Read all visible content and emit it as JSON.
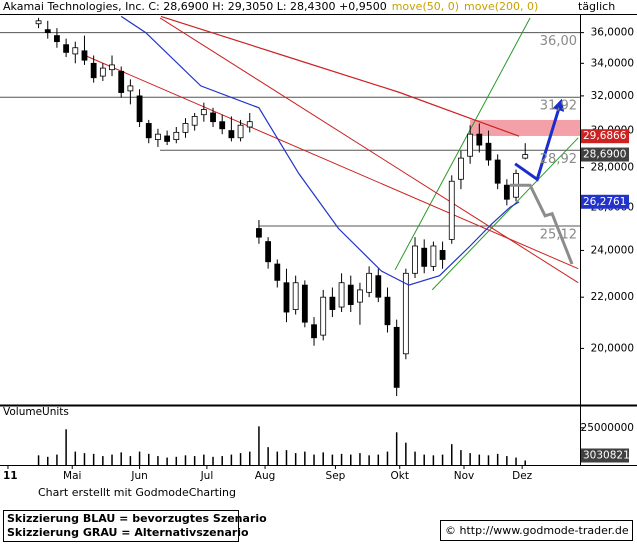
{
  "chart_data": {
    "type": "candlestick",
    "title": "Akamai Technologies, Inc. C: 28,6900 H: 29,3050 L: 28,4300 +0,9500",
    "timeframe": "täglich",
    "legend_color": "#c8a000",
    "log_scale": true,
    "grid": false,
    "candle_up_color": "#ffffff",
    "candle_down_color": "#000000",
    "xlim": [
      -2.6,
      186.9
    ],
    "ylim": [
      18,
      37.2
    ],
    "xticks": [
      {
        "value": 0,
        "label": "11"
      },
      {
        "value": 21,
        "label": "Mai"
      },
      {
        "value": 43,
        "label": "Jun"
      },
      {
        "value": 65,
        "label": "Jul"
      },
      {
        "value": 84,
        "label": "Aug"
      },
      {
        "value": 107,
        "label": "Sep"
      },
      {
        "value": 128,
        "label": "Okt"
      },
      {
        "value": 149,
        "label": "Nov"
      },
      {
        "value": 168,
        "label": "Dez"
      }
    ],
    "yticks": [
      {
        "value": 20,
        "label": "20,0000"
      },
      {
        "value": 22,
        "label": "22,0000"
      },
      {
        "value": 24,
        "label": "24,0000"
      },
      {
        "value": 26,
        "label": "26,0000"
      },
      {
        "value": 28,
        "label": "28,0000"
      },
      {
        "value": 30,
        "label": "30,0000"
      },
      {
        "value": 32,
        "label": "32,0000"
      },
      {
        "value": 34,
        "label": "34,0000"
      },
      {
        "value": 36,
        "label": "36,0000"
      }
    ],
    "x": [
      10,
      13,
      16,
      19,
      22,
      25,
      28,
      31,
      34,
      37,
      40,
      43,
      46,
      49,
      52,
      55,
      58,
      61,
      64,
      67,
      70,
      73,
      76,
      79,
      82,
      85,
      88,
      91,
      94,
      97,
      100,
      103,
      106,
      109,
      112,
      115,
      118,
      121,
      124,
      127,
      130,
      133,
      136,
      139,
      142,
      145,
      148,
      151,
      154,
      157,
      160,
      163,
      166,
      169
    ],
    "open": [
      36.6,
      36.2,
      35.8,
      35.2,
      34.6,
      34.8,
      34.0,
      33.2,
      33.6,
      33.5,
      32.3,
      32.0,
      30.4,
      29.5,
      29.7,
      29.5,
      29.9,
      30.3,
      30.9,
      31.0,
      30.5,
      30.0,
      29.6,
      30.2,
      25.0,
      24.4,
      23.4,
      22.6,
      21.5,
      22.5,
      20.9,
      20.5,
      22.0,
      21.6,
      22.5,
      21.8,
      22.2,
      22.9,
      22.0,
      20.8,
      19.8,
      23.0,
      24.1,
      23.3,
      24.0,
      24.5,
      27.4,
      28.6,
      29.8,
      29.3,
      28.4,
      27.1,
      26.5,
      28.5
    ],
    "high": [
      37.0,
      36.8,
      36.3,
      35.6,
      35.4,
      35.8,
      34.5,
      34.0,
      34.5,
      33.8,
      33.0,
      32.4,
      30.6,
      30.1,
      30.0,
      30.2,
      30.7,
      31.0,
      31.6,
      31.3,
      30.9,
      30.8,
      30.6,
      31.0,
      25.4,
      24.6,
      23.6,
      23.2,
      22.9,
      22.7,
      21.2,
      22.3,
      22.4,
      23.0,
      22.9,
      22.6,
      23.3,
      23.2,
      22.4,
      21.1,
      23.2,
      24.6,
      24.5,
      24.4,
      24.4,
      27.6,
      28.9,
      30.3,
      30.4,
      30.0,
      28.7,
      27.4,
      27.9,
      29.305
    ],
    "low": [
      36.3,
      35.6,
      35.0,
      34.4,
      34.0,
      33.9,
      32.8,
      32.9,
      33.2,
      31.9,
      31.5,
      30.2,
      29.3,
      29.1,
      29.2,
      29.3,
      29.6,
      30.0,
      30.5,
      30.2,
      29.8,
      29.4,
      29.4,
      29.9,
      24.3,
      23.2,
      22.4,
      21.0,
      21.3,
      20.8,
      20.1,
      20.3,
      21.2,
      21.4,
      21.4,
      20.9,
      22.0,
      21.8,
      20.6,
      18.3,
      19.6,
      22.8,
      23.0,
      23.1,
      23.2,
      24.3,
      26.9,
      28.2,
      28.8,
      28.1,
      26.9,
      26.1,
      26.3,
      28.43
    ],
    "close": [
      36.8,
      36.0,
      35.4,
      34.7,
      35.0,
      34.2,
      33.1,
      33.7,
      33.9,
      32.2,
      32.6,
      30.5,
      29.6,
      29.8,
      29.4,
      29.9,
      30.4,
      30.8,
      31.2,
      30.5,
      30.1,
      29.6,
      30.3,
      30.5,
      24.6,
      23.5,
      22.7,
      21.4,
      22.6,
      21.0,
      20.4,
      22.0,
      21.5,
      22.6,
      21.7,
      22.3,
      23.0,
      22.0,
      20.9,
      18.6,
      23.0,
      24.2,
      23.3,
      24.2,
      23.6,
      27.3,
      28.5,
      29.8,
      29.2,
      28.4,
      27.2,
      26.4,
      27.7,
      28.69
    ],
    "close_tag": {
      "value": 28.69,
      "label": "28,6900",
      "color": "#404040"
    },
    "series": [
      {
        "name": "move(50, 0)",
        "color": "#2233cc",
        "x": [
          37,
          45,
          63,
          82,
          95,
          108,
          122,
          131,
          141,
          151,
          158,
          164,
          167
        ],
        "values": [
          37.1,
          36.0,
          32.6,
          31.3,
          27.7,
          25.0,
          23.1,
          22.5,
          22.9,
          24.2,
          25.2,
          26.0,
          26.2761
        ],
        "tag": {
          "value": 26.2761,
          "label": "26,2761"
        }
      },
      {
        "name": "move(200, 0)",
        "color": "#cc2222",
        "x": [
          50,
          90,
          128,
          154,
          167
        ],
        "values": [
          37.1,
          34.5,
          32.2,
          30.5,
          29.6866
        ],
        "tag": {
          "value": 29.6866,
          "label": "29,6866"
        }
      }
    ],
    "levels": [
      {
        "value": 36,
        "label": "36,00",
        "from": -2.6
      },
      {
        "value": 31.92,
        "label": "31,92",
        "from": -2.6
      },
      {
        "value": 28.92,
        "label": "28,92",
        "from": 49.7
      },
      {
        "value": 25.12,
        "label": "25,12",
        "from": 82
      }
    ],
    "level_color": "#555555",
    "zone": {
      "color": "#f4a0a8",
      "x": [
        151,
        186.9
      ],
      "y": [
        29.7,
        30.6
      ]
    },
    "trend_lines": [
      {
        "color": "#2a9a2a",
        "x": [
          126.5,
          170.6
        ],
        "values": [
          23.15,
          37.0
        ]
      },
      {
        "color": "#2a9a2a",
        "x": [
          138.6,
          186.3
        ],
        "values": [
          22.3,
          29.6
        ]
      },
      {
        "color": "#cc2222",
        "x": [
          25.2,
          186.3
        ],
        "values": [
          34.5,
          23.2
        ]
      },
      {
        "color": "#cc2222",
        "x": [
          49.7,
          186.3
        ],
        "values": [
          37.0,
          22.6
        ]
      }
    ],
    "scenarios": [
      {
        "color": "#1a2ecc",
        "x": [
          165.7,
          172.9,
          180.4
        ],
        "values": [
          28.2,
          27.4,
          31.5
        ]
      },
      {
        "color": "#8c8c8c",
        "x": [
          164,
          170.6,
          175.5,
          177.8,
          184.3
        ],
        "values": [
          27.1,
          27.1,
          25.6,
          25.7,
          23.4
        ]
      }
    ],
    "volume": {
      "title": "VolumeUnits",
      "color": "#000000",
      "values": [
        6500000,
        5500000,
        7000000,
        24000000,
        9000000,
        8000000,
        7500000,
        6000000,
        7000000,
        8500000,
        6000000,
        9000000,
        7500000,
        6000000,
        5000000,
        5500000,
        6500000,
        6000000,
        7000000,
        5500000,
        6000000,
        7000000,
        8000000,
        9000000,
        26000000,
        12000000,
        9000000,
        10000000,
        8000000,
        9000000,
        7000000,
        8500000,
        7000000,
        7500000,
        7000000,
        8000000,
        6500000,
        7000000,
        9000000,
        22000000,
        15000000,
        9000000,
        7000000,
        6500000,
        7000000,
        14000000,
        10000000,
        8000000,
        7000000,
        6500000,
        7500000,
        6000000,
        5000000,
        3030821
      ],
      "ylim": [
        0,
        39000000
      ],
      "yticks": [
        {
          "value": 25000000,
          "label": "25000000"
        }
      ],
      "tag": {
        "value": 3030821,
        "label": "3030821",
        "color": "#404040"
      }
    }
  },
  "footer": {
    "credit": "Chart erstellt mit GodmodeCharting",
    "notes": [
      "Skizzierung BLAU = bevorzugtes Szenario",
      "Skizzierung GRAU = Alternativszenario"
    ],
    "url": "© http://www.godmode-trader.de"
  }
}
